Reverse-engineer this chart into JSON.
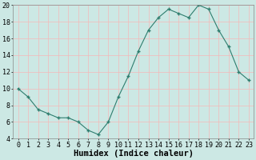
{
  "x": [
    0,
    1,
    2,
    3,
    4,
    5,
    6,
    7,
    8,
    9,
    10,
    11,
    12,
    13,
    14,
    15,
    16,
    17,
    18,
    19,
    20,
    21,
    22,
    23
  ],
  "y": [
    10.0,
    9.0,
    7.5,
    7.0,
    6.5,
    6.5,
    6.0,
    5.0,
    4.5,
    6.0,
    9.0,
    11.5,
    14.5,
    17.0,
    18.5,
    19.5,
    19.0,
    18.5,
    20.0,
    19.5,
    17.0,
    15.0,
    12.0,
    11.0
  ],
  "xlabel": "Humidex (Indice chaleur)",
  "ylim": [
    4,
    20
  ],
  "xlim_min": -0.5,
  "xlim_max": 23.5,
  "yticks": [
    4,
    6,
    8,
    10,
    12,
    14,
    16,
    18,
    20
  ],
  "xticks": [
    0,
    1,
    2,
    3,
    4,
    5,
    6,
    7,
    8,
    9,
    10,
    11,
    12,
    13,
    14,
    15,
    16,
    17,
    18,
    19,
    20,
    21,
    22,
    23
  ],
  "line_color": "#2e7d6e",
  "marker_color": "#2e7d6e",
  "bg_color": "#cce8e4",
  "grid_color": "#f5b8b8",
  "title": "",
  "tick_fontsize": 6,
  "xlabel_fontsize": 7.5
}
